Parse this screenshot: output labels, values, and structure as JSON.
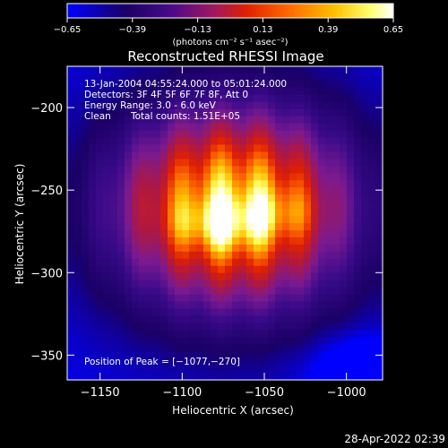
{
  "chart_data": {
    "type": "heatmap",
    "title": "Reconstructed RHESSI Image",
    "xlabel": "Heliocentric X (arcsec)",
    "ylabel": "Heliocentric Y (arcsec)",
    "xlim": [
      -1170,
      -978
    ],
    "ylim": [
      -365,
      -175
    ],
    "xticks": [
      -1150,
      -1100,
      -1050,
      -1000
    ],
    "yticks": [
      -200,
      -250,
      -300,
      -350
    ],
    "xtick_labels": [
      "−1150",
      "−1100",
      "−1050",
      "−1000"
    ],
    "ytick_labels": [
      "−200",
      "−250",
      "−300",
      "−350"
    ],
    "colorbar": {
      "min": -0.65,
      "max": 0.65,
      "ticks": [
        -0.65,
        -0.39,
        -0.13,
        0.13,
        0.39,
        0.65
      ],
      "tick_labels": [
        "−0.65",
        "−0.39",
        "−0.13",
        "0.13",
        "0.39",
        "0.65"
      ],
      "units": "(photons cm⁻² s⁻¹ asec⁻²)"
    },
    "colormap": [
      "#0000ff",
      "#1a0066",
      "#3a0a8a",
      "#7a1a90",
      "#b01840",
      "#e02000",
      "#ff6a00",
      "#ffc000",
      "#ffff66",
      "#ffffff"
    ],
    "peak": [
      -1077,
      -270
    ],
    "annotations": {
      "time": "13-Jan-2004 04:55:24.000 to 05:01:24.000",
      "detectors": "Detectors: 3F 4F 5F 6F 7F 8F, Att 0",
      "energy": "Energy Range: 3.0 - 6.0 keV",
      "method": "Clean",
      "counts": "Total counts: 1.51E+05",
      "peak_text": "Position of Peak = [−1077,−270]"
    }
  },
  "footer": {
    "timestamp": "28-Apr-2022 02:39"
  }
}
